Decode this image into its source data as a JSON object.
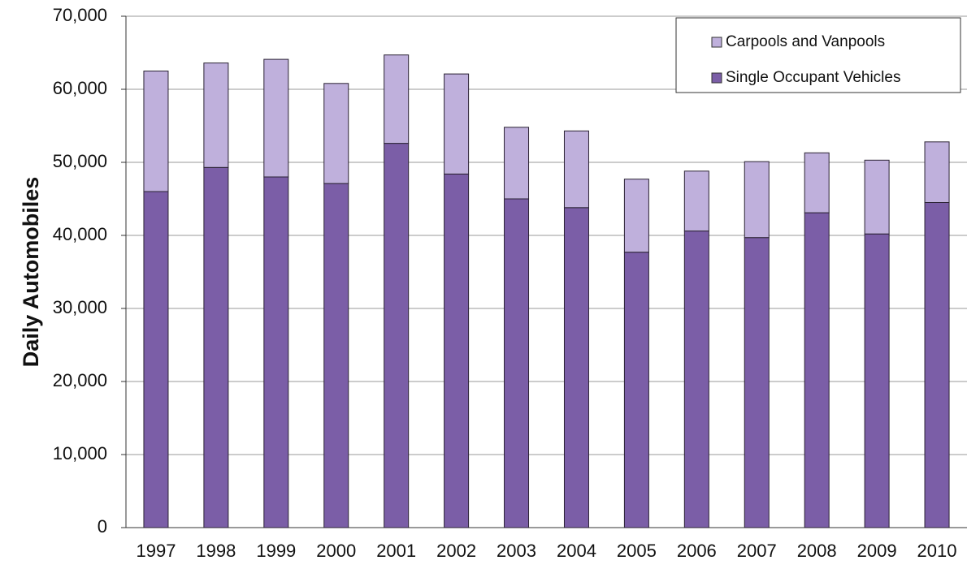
{
  "chart_data": {
    "type": "stacked_bar",
    "y_label": "Daily Automobiles",
    "categories": [
      "1997",
      "1998",
      "1999",
      "2000",
      "2001",
      "2002",
      "2003",
      "2004",
      "2005",
      "2006",
      "2007",
      "2008",
      "2009",
      "2010"
    ],
    "series": [
      {
        "name": "Single Occupant Vehicles",
        "color": "#7b5ea7",
        "values": [
          46000,
          49300,
          48000,
          47100,
          52600,
          48400,
          45000,
          43800,
          37700,
          40600,
          39700,
          43100,
          40200,
          44500
        ]
      },
      {
        "name": "Carpools and Vanpools",
        "color": "#bfb0dc",
        "values": [
          16500,
          14300,
          16100,
          13700,
          12100,
          13700,
          9800,
          10500,
          10000,
          8200,
          10400,
          8200,
          10100,
          8300
        ]
      }
    ],
    "ylim": [
      0,
      70000
    ],
    "yticks": [
      0,
      {
        "value": 10000,
        "label": "10,000"
      },
      {
        "value": 20000,
        "label": "20,000"
      },
      {
        "value": 30000,
        "label": "30,000"
      },
      {
        "value": 40000,
        "label": "40,000"
      },
      {
        "value": 50000,
        "label": "50,000"
      },
      {
        "value": 60000,
        "label": "60,000"
      },
      {
        "value": 70000,
        "label": "70,000"
      }
    ],
    "grid": true
  }
}
